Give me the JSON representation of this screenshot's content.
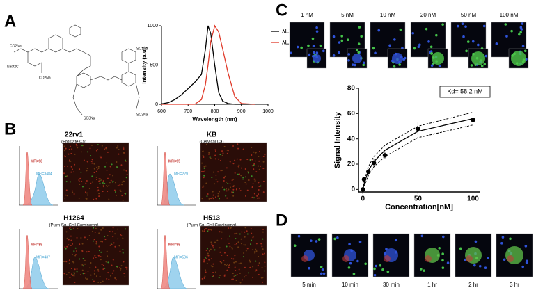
{
  "panel_labels": [
    "A",
    "B",
    "C",
    "D"
  ],
  "structure_labels": [
    "CO2Na",
    "NaO2C",
    "CO2Na",
    "SO3Na",
    "SO3Na",
    "SO3Na"
  ],
  "chart_data": [
    {
      "type": "line",
      "xlabel": "Wavelength (nm)",
      "ylabel": "Intensity (a.u.)",
      "x": [
        600,
        625,
        650,
        675,
        700,
        725,
        750,
        765,
        775,
        785,
        800,
        815,
        830,
        850,
        875,
        900,
        950
      ],
      "series": [
        {
          "name": "λEx",
          "color": "#000000",
          "values": [
            5,
            20,
            60,
            120,
            200,
            280,
            380,
            700,
            1000,
            900,
            500,
            150,
            40,
            10,
            0,
            0,
            0
          ]
        },
        {
          "name": "λEm",
          "color": "#e03a2a",
          "values": [
            0,
            0,
            0,
            0,
            0,
            0,
            60,
            250,
            500,
            800,
            1000,
            920,
            700,
            400,
            100,
            10,
            0
          ]
        }
      ],
      "xlim": [
        600,
        1000
      ],
      "xticks": [
        600,
        700,
        800,
        900,
        1000
      ],
      "ylim": [
        0,
        1000
      ],
      "yticks": [
        0,
        500,
        1000
      ],
      "legend": "right"
    },
    {
      "type": "line",
      "xlabel": "Concentration[nM]",
      "ylabel": "Signal Intensity",
      "annotation": "Kd= 58.2 nM",
      "x": [
        0,
        1,
        5,
        10,
        20,
        50,
        100
      ],
      "series": [
        {
          "color": "#000000",
          "style": "markers",
          "values": [
            0,
            8,
            14,
            21,
            27,
            48,
            55
          ],
          "errors": [
            1,
            2,
            2,
            3,
            3,
            5,
            3
          ]
        },
        {
          "color": "#000000",
          "style": "solid",
          "values": [
            0,
            4,
            15,
            22,
            31,
            46,
            56
          ]
        },
        {
          "color": "#000000",
          "style": "dashed",
          "values": [
            0,
            6,
            18,
            26,
            35,
            50,
            61
          ]
        },
        {
          "color": "#000000",
          "style": "dashed",
          "values": [
            0,
            2,
            11,
            18,
            26,
            41,
            51
          ]
        }
      ],
      "xlim": [
        -4,
        106
      ],
      "xticks": [
        0,
        50,
        100
      ],
      "ylim": [
        -2,
        80
      ],
      "yticks": [
        0,
        20,
        40,
        60,
        80
      ]
    }
  ],
  "flow": [
    {
      "title": "22rv1",
      "subtitle": "(Prostate Ca)",
      "mfi_control": "MFI=98",
      "mfi_sample": "MFI=3484"
    },
    {
      "title": "KB",
      "subtitle": "(Cervical Ca)",
      "mfi_control": "MFI=95",
      "mfi_sample": "MFI=229"
    },
    {
      "title": "H1264",
      "subtitle": "(Pulm Sq. Cell Carcinoma)",
      "mfi_control": "MFI=89",
      "mfi_sample": "MFI=437"
    },
    {
      "title": "H513",
      "subtitle": "(Pulm Sq. Cell Carcinoma)",
      "mfi_control": "MFI=95",
      "mfi_sample": "MFI=506"
    }
  ],
  "concentrations": [
    "1 nM",
    "5 nM",
    "10 nM",
    "20 nM",
    "50 nM",
    "100 nM"
  ],
  "timepoints": [
    "5 min",
    "10 min",
    "30 min",
    "1 hr",
    "2 hr",
    "3 hr"
  ]
}
